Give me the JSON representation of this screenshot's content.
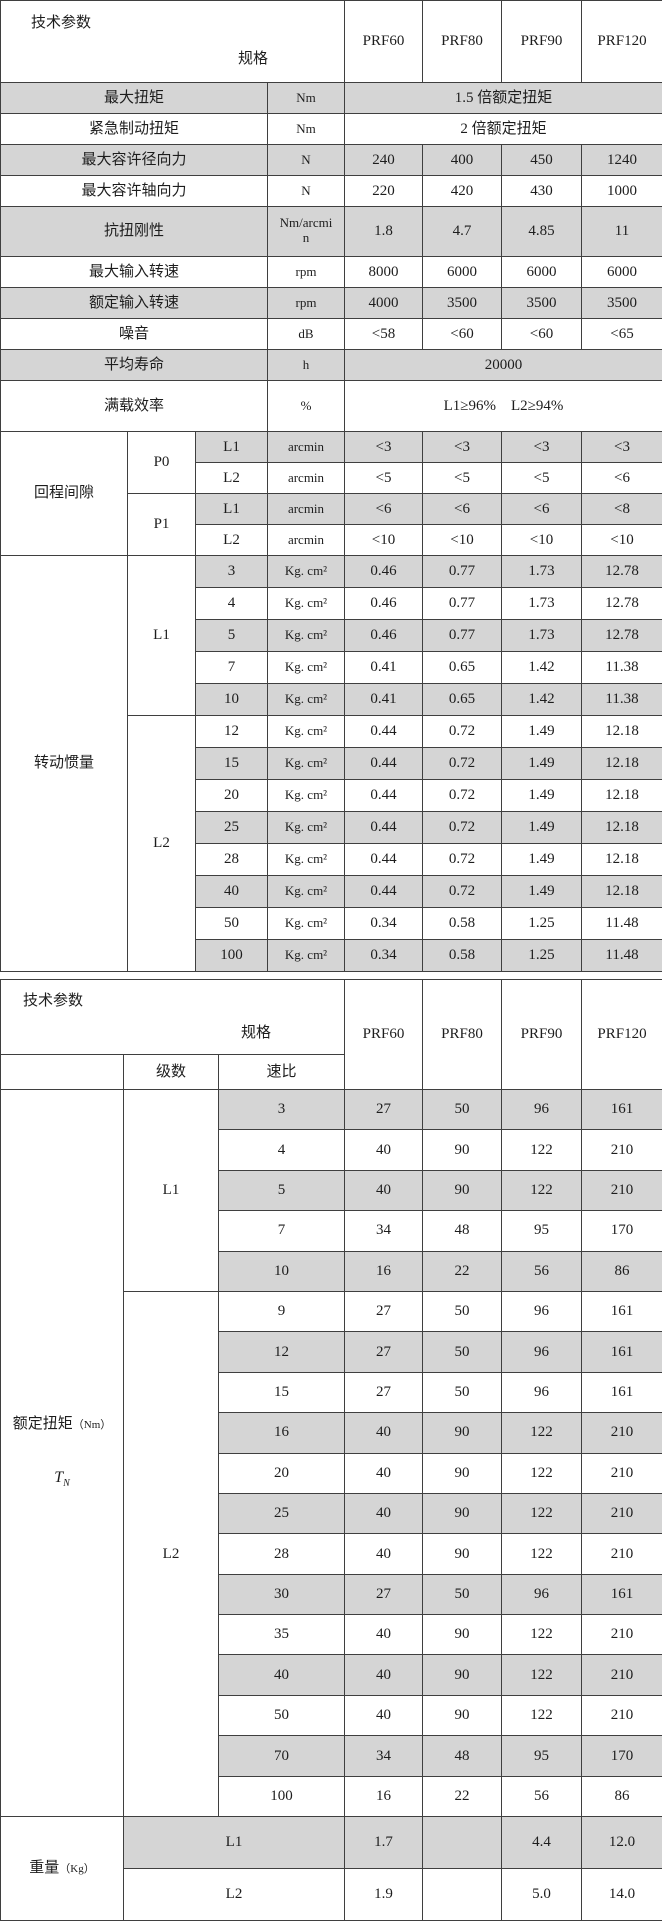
{
  "colors": {
    "row_shade": "#d5d5d5",
    "border": "#3f3f3f",
    "text": "#1d1d1d"
  },
  "table1": {
    "header": {
      "spec": "规格",
      "param": "技术参数",
      "columns": [
        "PRF60",
        "PRF80",
        "PRF90",
        "PRF120"
      ]
    },
    "rows": [
      {
        "label": "最大扭矩",
        "unit": "Nm",
        "span": "1.5 倍额定扭矩"
      },
      {
        "label": "紧急制动扭矩",
        "unit": "Nm",
        "span": "2 倍额定扭矩"
      },
      {
        "label": "最大容许径向力",
        "unit": "N",
        "values": [
          "240",
          "400",
          "450",
          "1240"
        ]
      },
      {
        "label": "最大容许轴向力",
        "unit": "N",
        "values": [
          "220",
          "420",
          "430",
          "1000"
        ]
      },
      {
        "label": "抗扭刚性",
        "unit": "Nm/arcmin",
        "values": [
          "1.8",
          "4.7",
          "4.85",
          "11"
        ]
      },
      {
        "label": "最大输入转速",
        "unit": "rpm",
        "values": [
          "8000",
          "6000",
          "6000",
          "6000"
        ]
      },
      {
        "label": "额定输入转速",
        "unit": "rpm",
        "values": [
          "4000",
          "3500",
          "3500",
          "3500"
        ]
      },
      {
        "label": "噪音",
        "unit": "dB",
        "values": [
          "<58",
          "<60",
          "<60",
          "<65"
        ]
      },
      {
        "label": "平均寿命",
        "unit": "h",
        "span": "20000"
      },
      {
        "label": "满载效率",
        "unit": "%",
        "span": "L1≥96%    L2≥94%"
      }
    ],
    "backlash": {
      "label": "回程间隙",
      "groups": [
        {
          "grade": "P0",
          "rows": [
            {
              "stage": "L1",
              "unit": "arcmin",
              "values": [
                "<3",
                "<3",
                "<3",
                "<3"
              ]
            },
            {
              "stage": "L2",
              "unit": "arcmin",
              "values": [
                "<5",
                "<5",
                "<5",
                "<6"
              ]
            }
          ]
        },
        {
          "grade": "P1",
          "rows": [
            {
              "stage": "L1",
              "unit": "arcmin",
              "values": [
                "<6",
                "<6",
                "<6",
                "<8"
              ]
            },
            {
              "stage": "L2",
              "unit": "arcmin",
              "values": [
                "<10",
                "<10",
                "<10",
                "<10"
              ]
            }
          ]
        }
      ]
    },
    "inertia": {
      "label": "转动惯量",
      "groups": [
        {
          "stage": "L1",
          "rows": [
            {
              "ratio": "3",
              "unit": "Kg. cm²",
              "values": [
                "0.46",
                "0.77",
                "1.73",
                "12.78"
              ]
            },
            {
              "ratio": "4",
              "unit": "Kg. cm²",
              "values": [
                "0.46",
                "0.77",
                "1.73",
                "12.78"
              ]
            },
            {
              "ratio": "5",
              "unit": "Kg. cm²",
              "values": [
                "0.46",
                "0.77",
                "1.73",
                "12.78"
              ]
            },
            {
              "ratio": "7",
              "unit": "Kg. cm²",
              "values": [
                "0.41",
                "0.65",
                "1.42",
                "11.38"
              ]
            },
            {
              "ratio": "10",
              "unit": "Kg. cm²",
              "values": [
                "0.41",
                "0.65",
                "1.42",
                "11.38"
              ]
            }
          ]
        },
        {
          "stage": "L2",
          "rows": [
            {
              "ratio": "12",
              "unit": "Kg. cm²",
              "values": [
                "0.44",
                "0.72",
                "1.49",
                "12.18"
              ]
            },
            {
              "ratio": "15",
              "unit": "Kg. cm²",
              "values": [
                "0.44",
                "0.72",
                "1.49",
                "12.18"
              ]
            },
            {
              "ratio": "20",
              "unit": "Kg. cm²",
              "values": [
                "0.44",
                "0.72",
                "1.49",
                "12.18"
              ]
            },
            {
              "ratio": "25",
              "unit": "Kg. cm²",
              "values": [
                "0.44",
                "0.72",
                "1.49",
                "12.18"
              ]
            },
            {
              "ratio": "28",
              "unit": "Kg. cm²",
              "values": [
                "0.44",
                "0.72",
                "1.49",
                "12.18"
              ]
            },
            {
              "ratio": "40",
              "unit": "Kg. cm²",
              "values": [
                "0.44",
                "0.72",
                "1.49",
                "12.18"
              ]
            },
            {
              "ratio": "50",
              "unit": "Kg. cm²",
              "values": [
                "0.34",
                "0.58",
                "1.25",
                "11.48"
              ]
            },
            {
              "ratio": "100",
              "unit": "Kg. cm²",
              "values": [
                "0.34",
                "0.58",
                "1.25",
                "11.48"
              ]
            }
          ]
        }
      ]
    }
  },
  "table2": {
    "header": {
      "spec": "规格",
      "param": "技术参数",
      "stage_col": "级数",
      "ratio_col": "速比",
      "columns": [
        "PRF60",
        "PRF80",
        "PRF90",
        "PRF120"
      ]
    },
    "torque": {
      "label": "额定扭矩",
      "unit_note": "（Nm）",
      "symbol": "T",
      "symbol_sub": "N",
      "groups": [
        {
          "stage": "L1",
          "rows": [
            {
              "ratio": "3",
              "values": [
                "27",
                "50",
                "96",
                "161"
              ]
            },
            {
              "ratio": "4",
              "values": [
                "40",
                "90",
                "122",
                "210"
              ]
            },
            {
              "ratio": "5",
              "values": [
                "40",
                "90",
                "122",
                "210"
              ]
            },
            {
              "ratio": "7",
              "values": [
                "34",
                "48",
                "95",
                "170"
              ]
            },
            {
              "ratio": "10",
              "values": [
                "16",
                "22",
                "56",
                "86"
              ]
            }
          ]
        },
        {
          "stage": "L2",
          "rows": [
            {
              "ratio": "9",
              "values": [
                "27",
                "50",
                "96",
                "161"
              ]
            },
            {
              "ratio": "12",
              "values": [
                "27",
                "50",
                "96",
                "161"
              ]
            },
            {
              "ratio": "15",
              "values": [
                "27",
                "50",
                "96",
                "161"
              ]
            },
            {
              "ratio": "16",
              "values": [
                "40",
                "90",
                "122",
                "210"
              ]
            },
            {
              "ratio": "20",
              "values": [
                "40",
                "90",
                "122",
                "210"
              ]
            },
            {
              "ratio": "25",
              "values": [
                "40",
                "90",
                "122",
                "210"
              ]
            },
            {
              "ratio": "28",
              "values": [
                "40",
                "90",
                "122",
                "210"
              ]
            },
            {
              "ratio": "30",
              "values": [
                "27",
                "50",
                "96",
                "161"
              ]
            },
            {
              "ratio": "35",
              "values": [
                "40",
                "90",
                "122",
                "210"
              ]
            },
            {
              "ratio": "40",
              "values": [
                "40",
                "90",
                "122",
                "210"
              ]
            },
            {
              "ratio": "50",
              "values": [
                "40",
                "90",
                "122",
                "210"
              ]
            },
            {
              "ratio": "70",
              "values": [
                "34",
                "48",
                "95",
                "170"
              ]
            },
            {
              "ratio": "100",
              "values": [
                "16",
                "22",
                "56",
                "86"
              ]
            }
          ]
        }
      ]
    },
    "weight": {
      "label": "重量",
      "unit_note": "（Kg）",
      "rows": [
        {
          "stage": "L1",
          "values": [
            "1.7",
            "",
            "4.4",
            "12.0"
          ]
        },
        {
          "stage": "L2",
          "values": [
            "1.9",
            "",
            "5.0",
            "14.0"
          ]
        }
      ]
    }
  }
}
